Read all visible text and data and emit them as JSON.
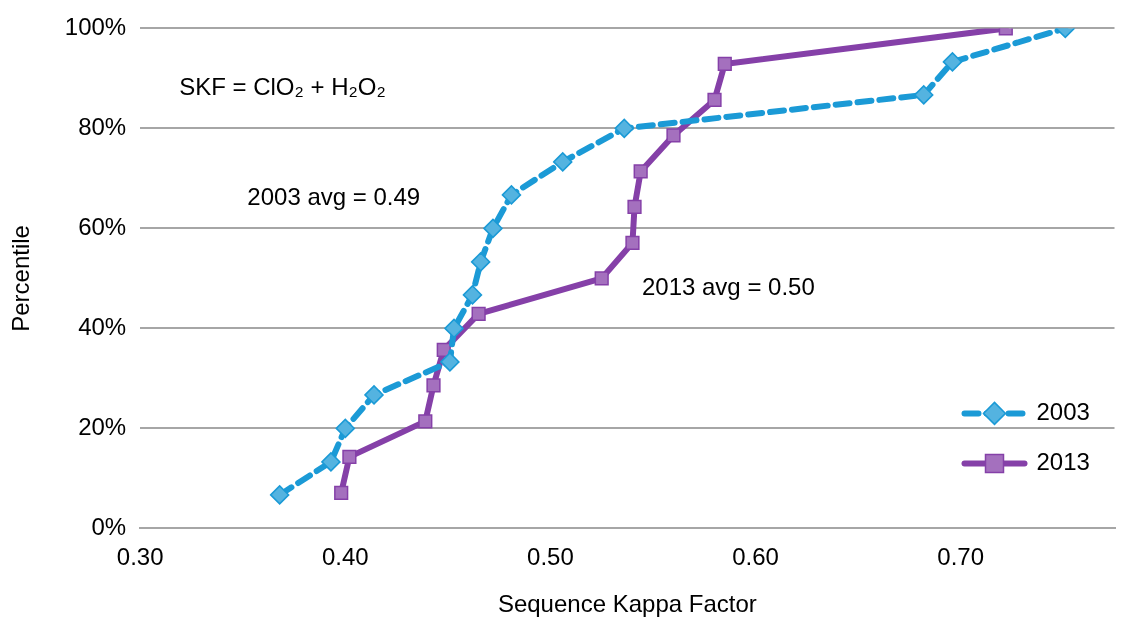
{
  "chart_data": {
    "type": "line",
    "xlabel": "Sequence Kappa Factor",
    "ylabel": "Percentile",
    "annotations": [
      "SKF = ClO₂ + H₂O₂",
      "2003 avg = 0.49",
      "2013 avg = 0.50"
    ],
    "series": [
      {
        "name": "2003",
        "color": "#1b9ad6",
        "marker": "diamond",
        "line_style": "dashed",
        "x": [
          0.368,
          0.393,
          0.4,
          0.414,
          0.451,
          0.453,
          0.462,
          0.466,
          0.472,
          0.481,
          0.506,
          0.536,
          0.682,
          0.696,
          0.751
        ],
        "values": [
          6.7,
          13.3,
          20,
          26.7,
          33.3,
          40,
          46.7,
          53.3,
          60,
          66.7,
          73.3,
          80,
          86.7,
          93.3,
          100
        ]
      },
      {
        "name": "2013",
        "color": "#8540a8",
        "marker": "square",
        "line_style": "solid",
        "x": [
          0.398,
          0.402,
          0.439,
          0.443,
          0.448,
          0.465,
          0.525,
          0.54,
          0.541,
          0.544,
          0.56,
          0.58,
          0.585,
          0.722
        ],
        "values": [
          7.1,
          14.3,
          21.4,
          28.6,
          35.7,
          42.9,
          50,
          57.1,
          64.3,
          71.4,
          78.6,
          85.7,
          92.9,
          100
        ]
      }
    ],
    "xlim": [
      0.3,
      0.775
    ],
    "xticks": [
      {
        "value": 0.3,
        "label": "0.30"
      },
      {
        "value": 0.4,
        "label": "0.40"
      },
      {
        "value": 0.5,
        "label": "0.50"
      },
      {
        "value": 0.6,
        "label": "0.60"
      },
      {
        "value": 0.7,
        "label": "0.70"
      }
    ],
    "ylim": [
      0,
      100
    ],
    "yticks": [
      {
        "value": 0,
        "label": "0%"
      },
      {
        "value": 20,
        "label": "20%"
      },
      {
        "value": 40,
        "label": "40%"
      },
      {
        "value": 60,
        "label": "60%"
      },
      {
        "value": 80,
        "label": "80%"
      },
      {
        "value": 100,
        "label": "100%"
      }
    ],
    "grid": "y",
    "legend": "bottom right"
  }
}
